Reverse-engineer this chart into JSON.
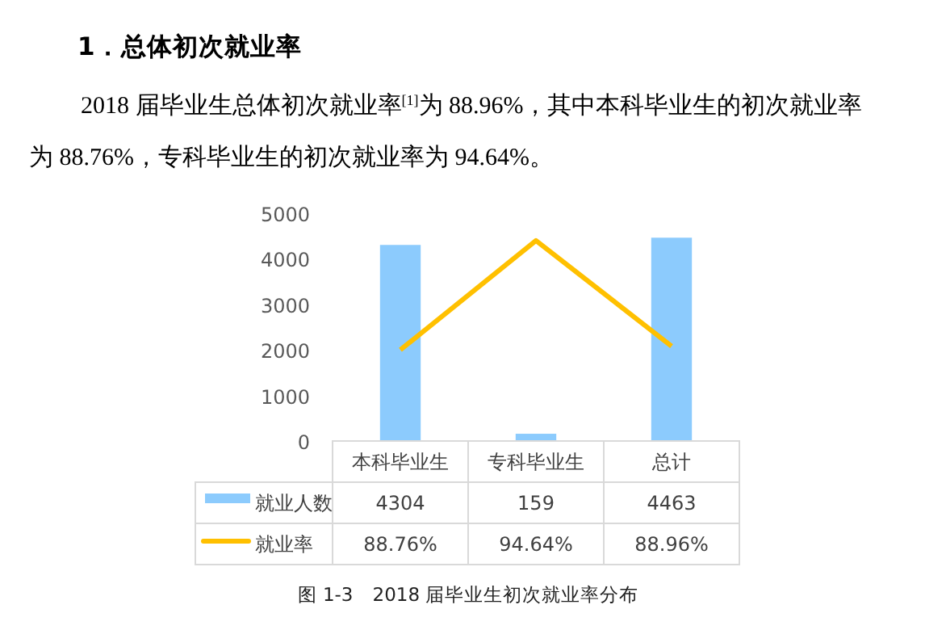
{
  "chart_data": {
    "type": "bar",
    "title": "1．总体初次就业率",
    "annotations": [
      "2018 届毕业生总体初次就业率$^{[1]}$为 88.96%，其中本科毕业生的初次就业率",
      "为 88.76%，专科毕业生的初次就业率为 94.64%。",
      "图 1-3　2018 届毕业生初次就业率分布"
    ],
    "categories": [
      "本科毕业生",
      "专科毕业生",
      "总计"
    ],
    "series": [
      {
        "name": "就业人数",
        "color": "#8ccbfd",
        "values": [
          4304,
          159,
          4463
        ],
        "value_labels": [
          "4304",
          "159",
          "4463"
        ]
      },
      {
        "name": "就业率",
        "type": "line",
        "axis": "y2",
        "color": "#ffc000",
        "values": [
          88.76,
          94.64,
          88.96
        ],
        "value_labels": [
          "88.76%",
          "94.64%",
          "88.96%"
        ]
      }
    ],
    "ylim": [
      0,
      5000
    ],
    "yticks": [
      0,
      1000,
      2000,
      3000,
      4000,
      5000
    ],
    "grid": false,
    "legend": "bottom"
  }
}
